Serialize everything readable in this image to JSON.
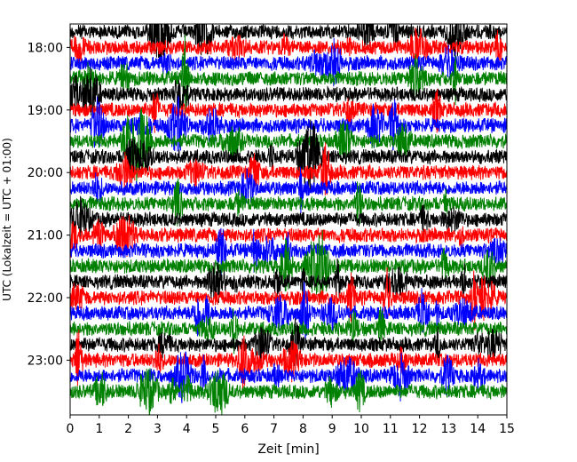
{
  "chart_data": {
    "type": "line",
    "title": "",
    "xlabel": "Zeit  [min]",
    "ylabel": "UTC (Lokalzeit = UTC + 01:00)",
    "xlim": [
      0,
      15
    ],
    "x_ticks": [
      "0",
      "1",
      "2",
      "3",
      "4",
      "5",
      "6",
      "7",
      "8",
      "9",
      "10",
      "11",
      "12",
      "13",
      "14",
      "15"
    ],
    "y_ticks": [
      "18:00",
      "19:00",
      "20:00",
      "21:00",
      "22:00",
      "23:00"
    ],
    "trace_interval_min": 15,
    "trace_start": "17:45",
    "trace_end": "23:45",
    "color_cycle": [
      "#000000",
      "#ff0000",
      "#0000ff",
      "#008000"
    ],
    "series": [
      {
        "start": "17:45",
        "color": "#000000"
      },
      {
        "start": "18:00",
        "color": "#ff0000"
      },
      {
        "start": "18:15",
        "color": "#0000ff"
      },
      {
        "start": "18:30",
        "color": "#008000"
      },
      {
        "start": "18:45",
        "color": "#000000"
      },
      {
        "start": "19:00",
        "color": "#ff0000"
      },
      {
        "start": "19:15",
        "color": "#0000ff"
      },
      {
        "start": "19:30",
        "color": "#008000"
      },
      {
        "start": "19:45",
        "color": "#000000"
      },
      {
        "start": "20:00",
        "color": "#ff0000"
      },
      {
        "start": "20:15",
        "color": "#0000ff"
      },
      {
        "start": "20:30",
        "color": "#008000"
      },
      {
        "start": "20:45",
        "color": "#000000"
      },
      {
        "start": "21:00",
        "color": "#ff0000"
      },
      {
        "start": "21:15",
        "color": "#0000ff"
      },
      {
        "start": "21:30",
        "color": "#008000"
      },
      {
        "start": "21:45",
        "color": "#000000"
      },
      {
        "start": "22:00",
        "color": "#ff0000"
      },
      {
        "start": "22:15",
        "color": "#0000ff"
      },
      {
        "start": "22:30",
        "color": "#008000"
      },
      {
        "start": "22:45",
        "color": "#000000"
      },
      {
        "start": "23:00",
        "color": "#ff0000"
      },
      {
        "start": "23:15",
        "color": "#0000ff"
      },
      {
        "start": "23:30",
        "color": "#008000"
      }
    ],
    "grid": false,
    "legend": "none"
  }
}
